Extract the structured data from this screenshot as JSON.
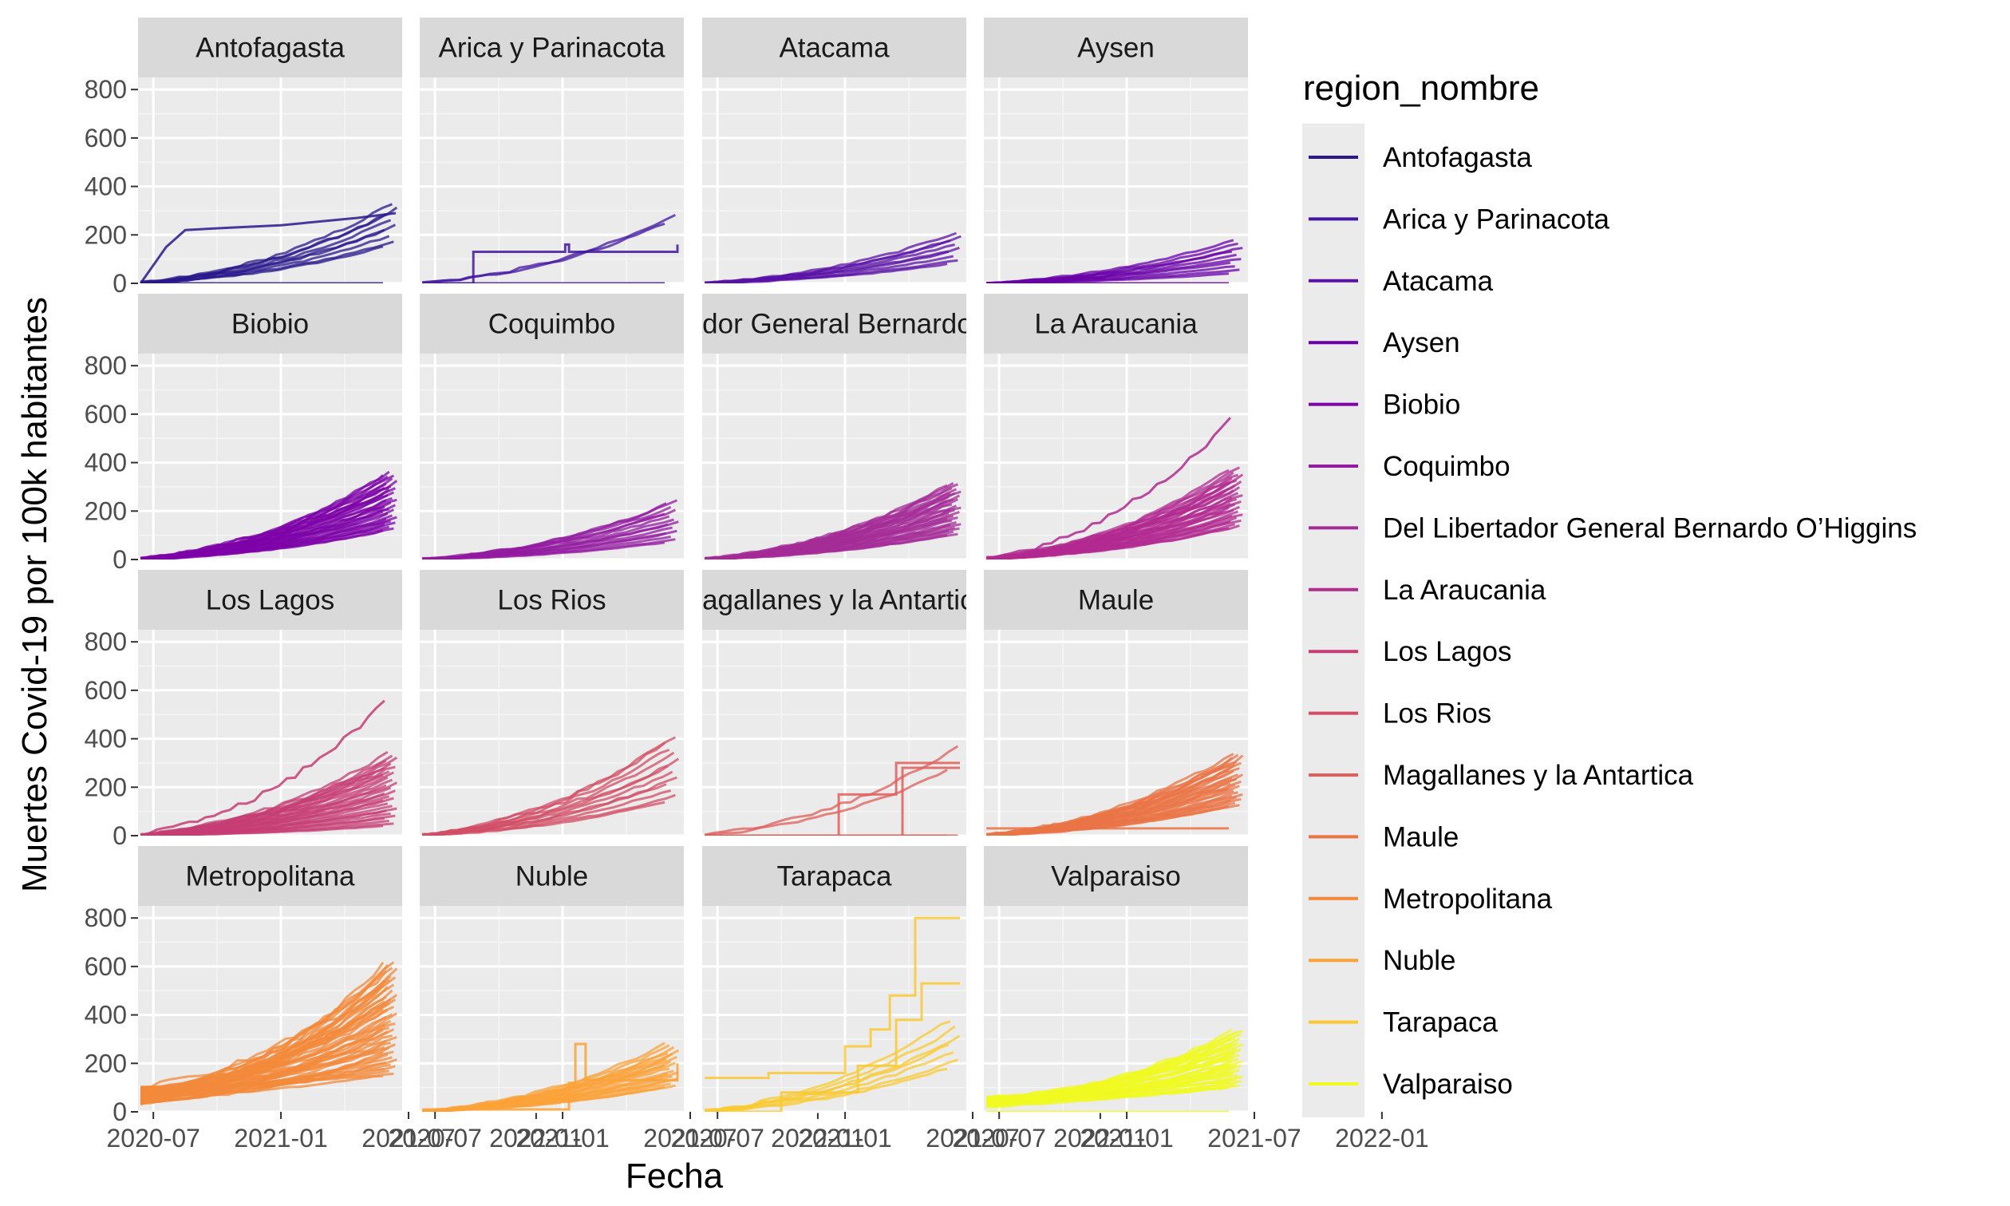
{
  "chart_data": {
    "type": "line",
    "layout": "facet-grid-4x4",
    "xlabel": "Fecha",
    "ylabel": "Muertes Covid-19 por 100k habitantes",
    "ylim": [
      0,
      850
    ],
    "yticks": [
      0,
      200,
      400,
      600,
      800
    ],
    "xlim": [
      -0.12,
      1.95
    ],
    "xticks": [
      {
        "pos": 0,
        "label": "2020-07"
      },
      {
        "pos": 1,
        "label": "2021-01"
      },
      {
        "pos": 2,
        "label": "2021-07"
      },
      {
        "pos": 3,
        "label": "2022-01"
      }
    ],
    "legend": {
      "title": "region_nombre",
      "placement": "right",
      "entries": [
        {
          "label": "Antofagasta",
          "color": "#2A1A8C"
        },
        {
          "label": "Arica y Parinacota",
          "color": "#4317A0"
        },
        {
          "label": "Atacama",
          "color": "#5A11A6"
        },
        {
          "label": "Aysen",
          "color": "#6A00A8"
        },
        {
          "label": "Biobio",
          "color": "#7E03A8"
        },
        {
          "label": "Coquimbo",
          "color": "#931BA0"
        },
        {
          "label": "Del Libertador General Bernardo O’Higgins",
          "color": "#A42C97"
        },
        {
          "label": "La Araucania",
          "color": "#B12A90"
        },
        {
          "label": "Los Lagos",
          "color": "#C53D74"
        },
        {
          "label": "Los Rios",
          "color": "#D14E66"
        },
        {
          "label": "Magallanes y la Antartica",
          "color": "#DE5F5B"
        },
        {
          "label": "Maule",
          "color": "#EA7446"
        },
        {
          "label": "Metropolitana",
          "color": "#F3893B"
        },
        {
          "label": "Nuble",
          "color": "#FBA238"
        },
        {
          "label": "Tarapaca",
          "color": "#F9C932"
        },
        {
          "label": "Valparaiso",
          "color": "#F0F921"
        }
      ]
    },
    "panels": [
      {
        "name": "Antofagasta",
        "color": "#2A1A8C",
        "n": 9,
        "min": 150,
        "max": 330,
        "extra": [
          {
            "type": "flat",
            "level": 0
          },
          {
            "type": "early",
            "level": 290
          }
        ]
      },
      {
        "name": "Arica y Parinacota",
        "color": "#4317A0",
        "n": 2,
        "min": 250,
        "max": 280,
        "extra": [
          {
            "type": "flat",
            "level": 0
          },
          {
            "type": "steps",
            "points": [
              [
                -0.1,
                0
              ],
              [
                0.2,
                0
              ],
              [
                0.3,
                130
              ],
              [
                1.0,
                130
              ],
              [
                1.02,
                160
              ],
              [
                1.05,
                130
              ],
              [
                1.9,
                160
              ]
            ]
          }
        ]
      },
      {
        "name": "Atacama",
        "color": "#5A11A6",
        "n": 9,
        "min": 80,
        "max": 210,
        "extra": []
      },
      {
        "name": "Aysen",
        "color": "#6A00A8",
        "n": 10,
        "min": 40,
        "max": 180,
        "extra": [
          {
            "type": "flat",
            "level": 0
          }
        ]
      },
      {
        "name": "Biobio",
        "color": "#7E03A8",
        "n": 33,
        "min": 120,
        "max": 360,
        "extra": []
      },
      {
        "name": "Coquimbo",
        "color": "#931BA0",
        "n": 15,
        "min": 70,
        "max": 240,
        "extra": []
      },
      {
        "name": "Del Libertador General Bernardo O’Higgins",
        "color": "#A42C97",
        "n": 33,
        "min": 100,
        "max": 320,
        "extra": []
      },
      {
        "name": "La Araucania",
        "color": "#B12A90",
        "n": 32,
        "min": 130,
        "max": 380,
        "extra": [
          {
            "type": "curve",
            "level": 575
          }
        ]
      },
      {
        "name": "Los Lagos",
        "color": "#C53D74",
        "n": 30,
        "min": 40,
        "max": 340,
        "extra": [
          {
            "type": "curve",
            "level": 550
          }
        ]
      },
      {
        "name": "Los Rios",
        "color": "#D14E66",
        "n": 12,
        "min": 140,
        "max": 410,
        "extra": []
      },
      {
        "name": "Magallanes y la Antartica",
        "color": "#DE5F5B",
        "n": 2,
        "min": 270,
        "max": 370,
        "extra": [
          {
            "type": "flat",
            "level": 0
          },
          {
            "type": "flat",
            "level": 0
          },
          {
            "type": "steps",
            "points": [
              [
                -0.1,
                0
              ],
              [
                0.95,
                0
              ],
              [
                0.95,
                170
              ],
              [
                1.3,
                170
              ],
              [
                1.4,
                300
              ],
              [
                1.9,
                300
              ]
            ]
          },
          {
            "type": "steps",
            "points": [
              [
                -0.1,
                0
              ],
              [
                1.45,
                0
              ],
              [
                1.45,
                280
              ],
              [
                1.9,
                280
              ]
            ]
          }
        ]
      },
      {
        "name": "Maule",
        "color": "#EA7446",
        "n": 30,
        "min": 120,
        "max": 340,
        "extra": [
          {
            "type": "flat",
            "level": 30
          }
        ]
      },
      {
        "name": "Metropolitana",
        "color": "#F3893B",
        "n": 52,
        "min": 150,
        "max": 620,
        "extra": [],
        "early": 100
      },
      {
        "name": "Nuble",
        "color": "#FBA238",
        "n": 21,
        "min": 100,
        "max": 280,
        "extra": [
          {
            "type": "steps",
            "points": [
              [
                -0.1,
                10
              ],
              [
                1.05,
                120
              ],
              [
                1.1,
                280
              ],
              [
                1.18,
                130
              ],
              [
                1.9,
                200
              ]
            ]
          }
        ]
      },
      {
        "name": "Tarapaca",
        "color": "#F9C932",
        "n": 7,
        "min": 180,
        "max": 380,
        "extra": [
          {
            "type": "steps",
            "points": [
              [
                -0.1,
                140
              ],
              [
                0.4,
                160
              ],
              [
                1.0,
                270
              ],
              [
                1.2,
                340
              ],
              [
                1.35,
                480
              ],
              [
                1.55,
                800
              ],
              [
                1.9,
                800
              ]
            ]
          },
          {
            "type": "steps",
            "points": [
              [
                -0.1,
                0
              ],
              [
                0.5,
                80
              ],
              [
                1.1,
                190
              ],
              [
                1.4,
                380
              ],
              [
                1.6,
                530
              ],
              [
                1.9,
                530
              ]
            ]
          }
        ]
      },
      {
        "name": "Valparaiso",
        "color": "#F0F921",
        "n": 38,
        "min": 100,
        "max": 340,
        "extra": [
          {
            "type": "flat",
            "level": 0
          }
        ],
        "early": 60
      }
    ]
  }
}
